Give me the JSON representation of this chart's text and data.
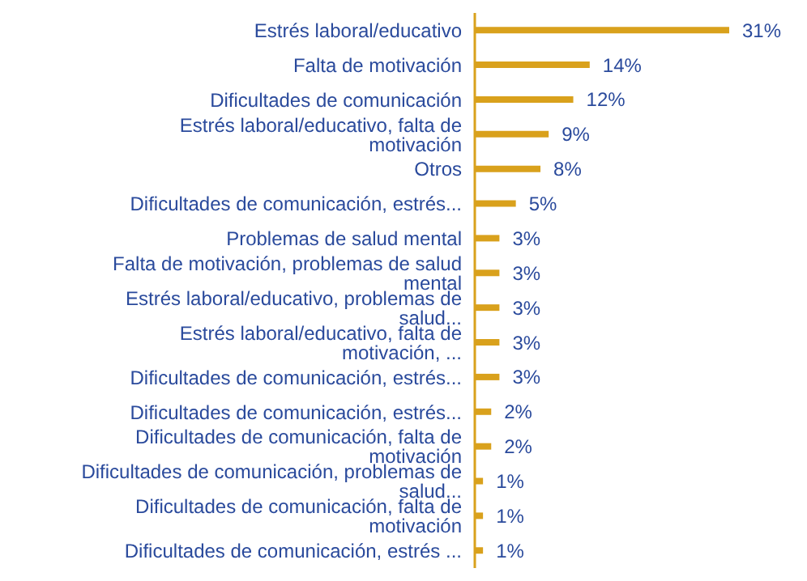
{
  "chart_data": {
    "type": "bar",
    "orientation": "horizontal",
    "tick_labels": "y",
    "categories": [
      "Estrés laboral/educativo",
      "Falta de motivación",
      "Dificultades de comunicación",
      "Estrés laboral/educativo, falta de motivación",
      "Otros",
      "Dificultades de comunicación, estrés...",
      "Problemas de salud mental",
      "Falta de motivación, problemas de salud mental",
      "Estrés laboral/educativo, problemas de salud...",
      "Estrés laboral/educativo, falta de motivación, ...",
      "Dificultades de comunicación, estrés...",
      "Dificultades de comunicación, estrés...",
      "Dificultades de comunicación, falta de motivación",
      "Dificultades de comunicación, problemas de salud...",
      "Dificultades de comunicación, falta de motivación",
      "Dificultades de comunicación, estrés ..."
    ],
    "values": [
      31,
      14,
      12,
      9,
      8,
      5,
      3,
      3,
      3,
      3,
      3,
      2,
      2,
      1,
      1,
      1
    ],
    "value_labels": [
      "31%",
      "14%",
      "12%",
      "9%",
      "8%",
      "5%",
      "3%",
      "3%",
      "3%",
      "3%",
      "3%",
      "2%",
      "2%",
      "1%",
      "1%",
      "1%"
    ],
    "color": "#d9a11c"
  }
}
